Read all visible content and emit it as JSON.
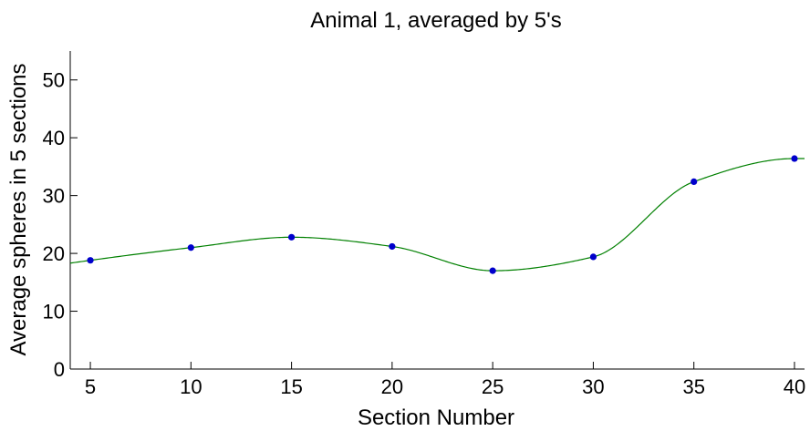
{
  "chart_data": {
    "type": "line",
    "title": "Animal 1, averaged by 5's",
    "xlabel": "Section Number",
    "ylabel": "Average spheres in 5 sections",
    "xlim": [
      4,
      40.5
    ],
    "ylim": [
      0,
      55
    ],
    "x_ticks": [
      5,
      10,
      15,
      20,
      25,
      30,
      35,
      40
    ],
    "y_ticks": [
      0,
      10,
      20,
      30,
      40,
      50
    ],
    "grid": false,
    "legend": "none",
    "series": [
      {
        "x": [
          5,
          10,
          15,
          20,
          25,
          30,
          35,
          40
        ],
        "y": [
          18.8,
          21.0,
          22.8,
          21.2,
          17.0,
          19.4,
          32.4,
          36.4
        ],
        "marker_color": "#0000cc",
        "line_color": "#008000",
        "line_style": "smooth-spline"
      }
    ]
  }
}
